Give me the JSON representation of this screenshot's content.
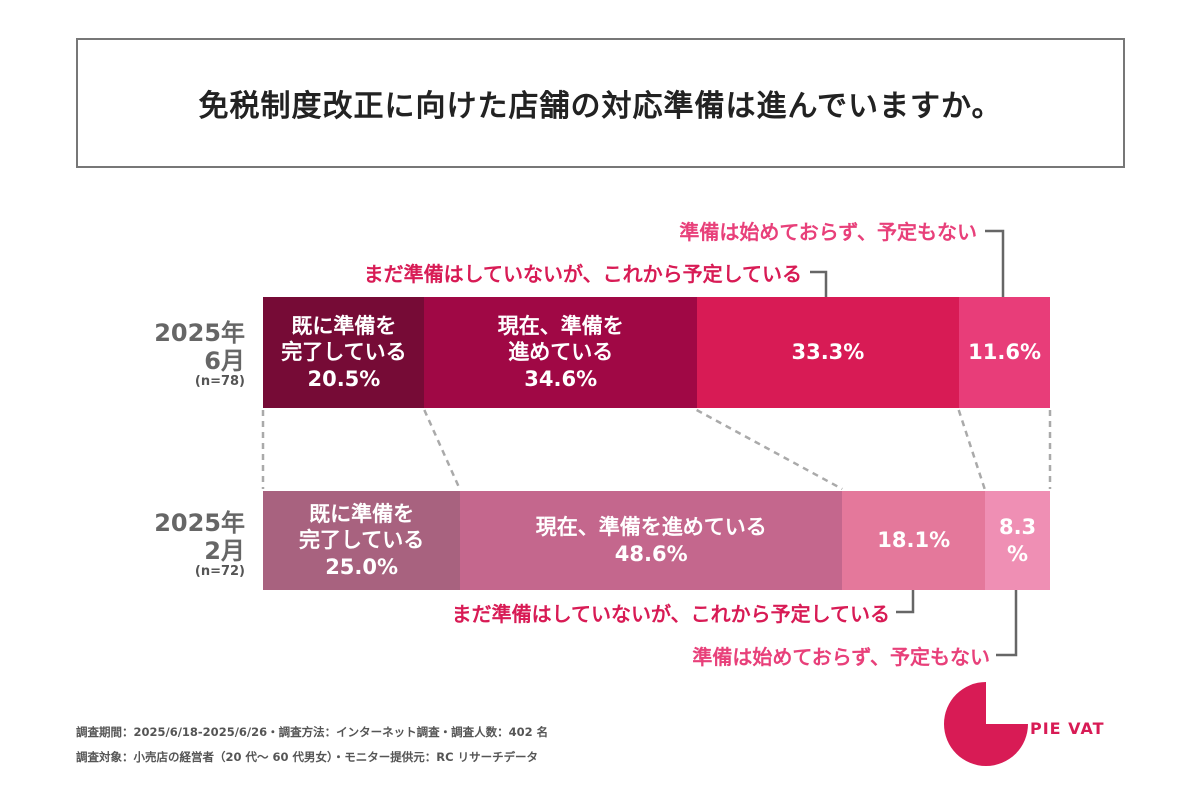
{
  "title": "免税制度改正に向けた店舗の対応準備は進んでいますか。",
  "chart_data": {
    "type": "bar",
    "stacked": true,
    "orientation": "horizontal",
    "xlim": [
      0,
      100
    ],
    "categories": [
      {
        "period": "2025年",
        "month": "6月",
        "n": "(n=78)"
      },
      {
        "period": "2025年",
        "month": "2月",
        "n": "(n=72)"
      }
    ],
    "series": [
      {
        "name": "既に準備を完了している",
        "values": [
          20.5,
          25.0
        ],
        "colors": [
          "#760b36",
          "#a8627f"
        ],
        "labels": [
          [
            "既に準備を",
            "完了している",
            "20.5%"
          ],
          [
            "既に準備を",
            "完了している",
            "25.0%"
          ]
        ]
      },
      {
        "name": "現在、準備を進めている",
        "values": [
          34.6,
          48.6
        ],
        "colors": [
          "#a00845",
          "#c4678d"
        ],
        "labels": [
          [
            "現在、準備を",
            "進めている",
            "34.6%"
          ],
          [
            "現在、準備を進めている",
            "48.6%"
          ]
        ]
      },
      {
        "name": "まだ準備はしていないが、これから予定している",
        "values": [
          33.3,
          18.1
        ],
        "colors": [
          "#d81b55",
          "#e4789b"
        ],
        "labels": [
          [
            "33.3%"
          ],
          [
            "18.1%"
          ]
        ]
      },
      {
        "name": "準備は始めておらず、予定もない",
        "values": [
          11.6,
          8.3
        ],
        "colors": [
          "#e83d79",
          "#ef8fb4"
        ],
        "labels": [
          [
            "11.6%"
          ],
          [
            "8.3",
            "%"
          ]
        ]
      }
    ],
    "callouts": {
      "not_started": {
        "text": "準備は始めておらず、予定もない",
        "color": "#e8407a"
      },
      "planned": {
        "text": "まだ準備はしていないが、これから予定している",
        "color": "#d81b55"
      }
    }
  },
  "footer": {
    "line1": "調査期間：2025/6/18-2025/6/26・調査方法：インターネット調査・調査人数：402 名",
    "line2": "調査対象：小売店の経営者（20 代～ 60 代男女）・モニター提供元：RC リサーチデータ"
  },
  "logo": {
    "text": "PIE VAT",
    "color": "#d81b55"
  }
}
